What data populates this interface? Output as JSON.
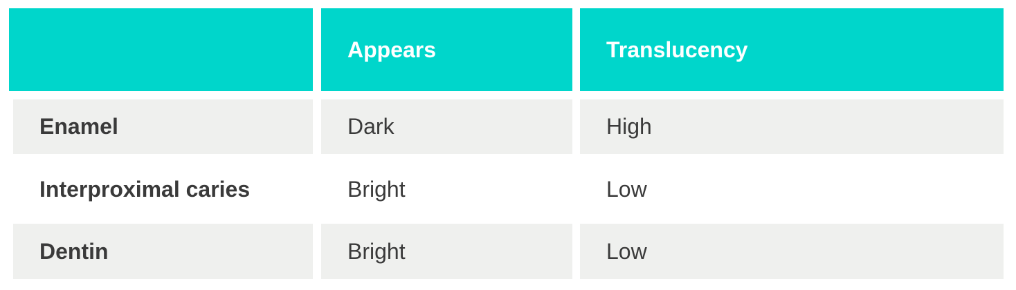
{
  "header": {
    "col0": "",
    "col1": "Appears",
    "col2": "Translucency"
  },
  "rows": [
    {
      "label": "Enamel",
      "appears": "Dark",
      "translucency": "High"
    },
    {
      "label": "Interproximal caries",
      "appears": "Bright",
      "translucency": "Low"
    },
    {
      "label": "Dentin",
      "appears": "Bright",
      "translucency": "Low"
    }
  ],
  "colors": {
    "header_bg": "#00d6cb",
    "header_text": "#ffffff",
    "shaded_row_bg": "#eff0ee",
    "body_text": "#3a3a3a"
  }
}
